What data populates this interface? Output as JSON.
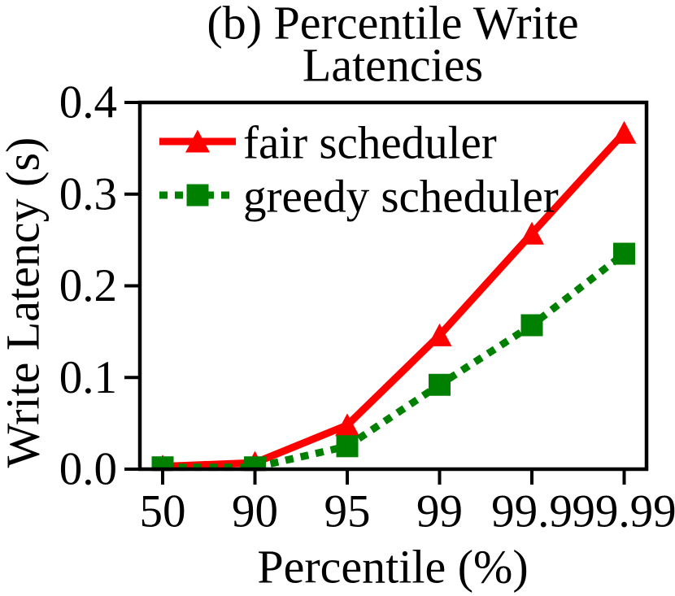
{
  "figure": {
    "background": "#ffffff",
    "text_color": "#000000",
    "axis_color": "#000000"
  },
  "chart_data": {
    "type": "line",
    "title": "(b) Percentile Write Latencies",
    "title_lines": [
      "(b) Percentile Write",
      "Latencies"
    ],
    "xlabel": "Percentile (%)",
    "ylabel": "Write Latency (s)",
    "categories": [
      "50",
      "90",
      "95",
      "99",
      "99.9",
      "99.99"
    ],
    "x_scale_note": "categorical percentile axis",
    "yticks": [
      0.0,
      0.1,
      0.2,
      0.3,
      0.4
    ],
    "ytick_labels": [
      "0.0",
      "0.1",
      "0.2",
      "0.3",
      "0.4"
    ],
    "ylim": [
      0,
      0.4
    ],
    "grid": false,
    "legend_position": "upper-left-inside",
    "legend_frame": false,
    "series": [
      {
        "name": "fair scheduler",
        "color": "#ff0000",
        "line_style": "solid",
        "marker": "triangle",
        "values": [
          0.003,
          0.007,
          0.048,
          0.146,
          0.257,
          0.367
        ]
      },
      {
        "name": "greedy scheduler",
        "color": "#008000",
        "line_style": "dotted",
        "marker": "square",
        "values": [
          0.002,
          0.002,
          0.025,
          0.092,
          0.157,
          0.235
        ]
      }
    ]
  }
}
